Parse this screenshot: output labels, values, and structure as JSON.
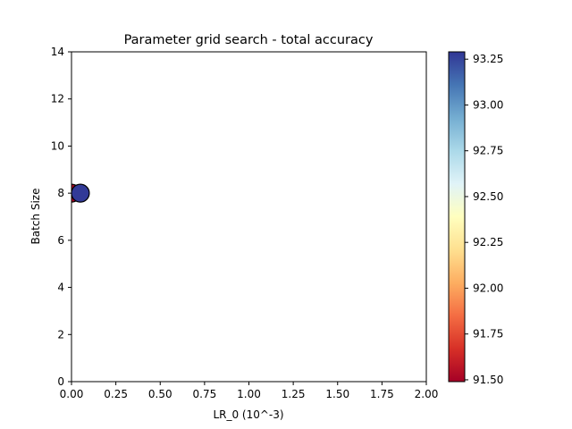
{
  "chart_data": {
    "type": "scatter",
    "title": "Parameter grid search - total accuracy",
    "xlabel": "LR_0 (10^-3)",
    "ylabel": "Batch Size",
    "xlim": [
      0,
      2
    ],
    "ylim": [
      0,
      14
    ],
    "xticks": [
      "0.00",
      "0.25",
      "0.50",
      "0.75",
      "1.00",
      "1.25",
      "1.50",
      "1.75",
      "2.00"
    ],
    "yticks": [
      "0",
      "2",
      "4",
      "6",
      "8",
      "10",
      "12",
      "14"
    ],
    "grid": false,
    "points": [
      {
        "x": 0.0,
        "y": 8,
        "value": 91.5
      },
      {
        "x": 0.05,
        "y": 8,
        "value": 93.28
      }
    ],
    "colorbar": {
      "colormap": "RdYlBu",
      "min": 91.49,
      "max": 93.29,
      "ticks": [
        "91.50",
        "91.75",
        "92.00",
        "92.25",
        "92.50",
        "92.75",
        "93.00",
        "93.25"
      ]
    }
  }
}
